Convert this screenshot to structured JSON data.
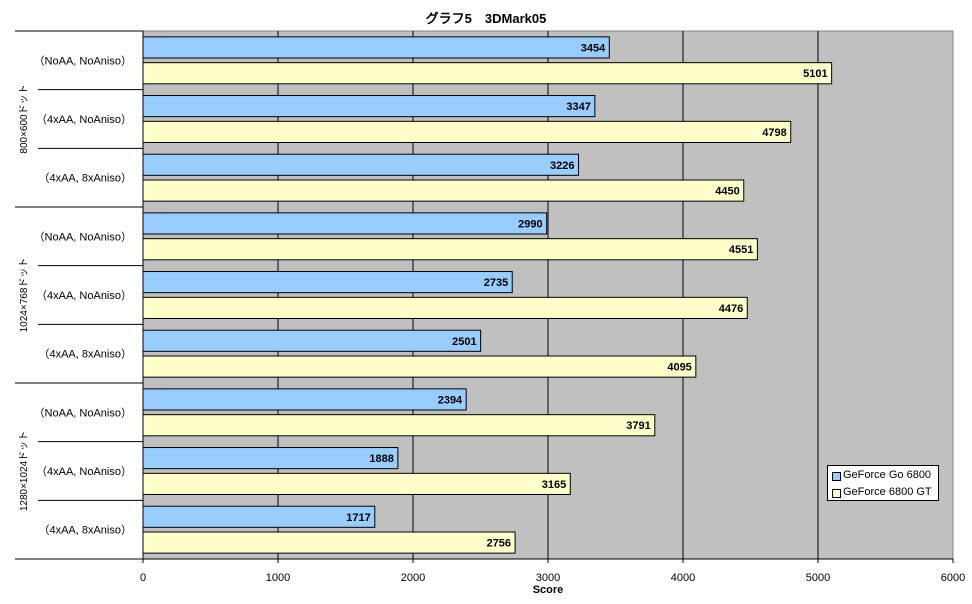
{
  "chart_data": {
    "type": "bar",
    "orientation": "horizontal",
    "title": "グラフ5　3DMark05",
    "xlabel": "Score",
    "xlim": [
      0,
      6000
    ],
    "xticks": [
      0,
      1000,
      2000,
      3000,
      4000,
      5000,
      6000
    ],
    "grid": true,
    "legend_position": "bottom-right",
    "groups": [
      {
        "label": "800×600ドット",
        "categories": [
          "（NoAA, NoAniso）",
          "（4xAA, NoAniso）",
          "（4xAA, 8xAniso）"
        ]
      },
      {
        "label": "1024×768ドット",
        "categories": [
          "（NoAA, NoAniso）",
          "（4xAA, NoAniso）",
          "（4xAA, 8xAniso）"
        ]
      },
      {
        "label": "1280×1024ドット",
        "categories": [
          "（NoAA, NoAniso）",
          "（4xAA, NoAniso）",
          "（4xAA, 8xAniso）"
        ]
      }
    ],
    "series": [
      {
        "name": "GeForce Go 6800",
        "color": "#99ccff",
        "values": [
          3454,
          3347,
          3226,
          2990,
          2735,
          2501,
          2394,
          1888,
          1717
        ]
      },
      {
        "name": "GeForce 6800 GT",
        "color": "#ffffcc",
        "values": [
          5101,
          4798,
          4450,
          4551,
          4476,
          4095,
          3791,
          3165,
          2756
        ]
      }
    ],
    "colors": {
      "plot_background": "#c0c0c0",
      "gridline": "#000000"
    }
  }
}
